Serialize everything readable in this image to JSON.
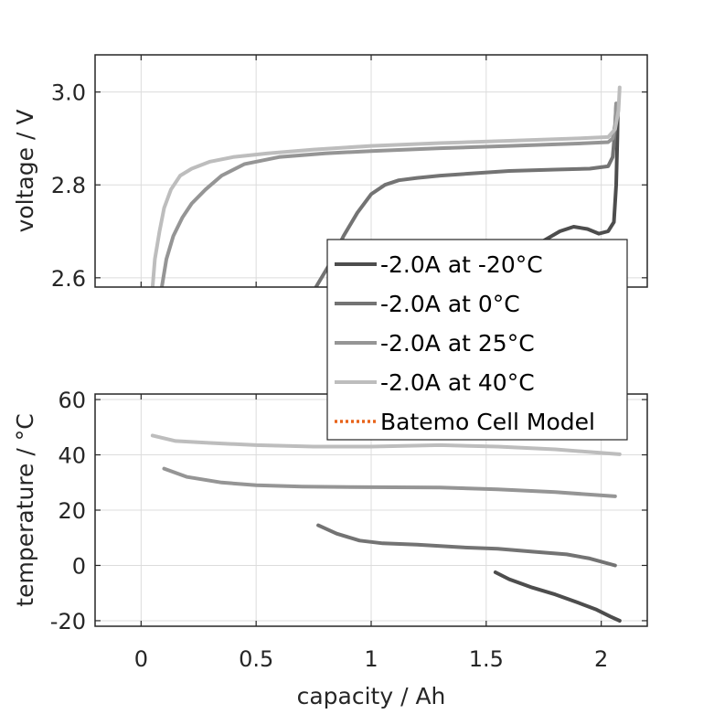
{
  "chart_data": [
    {
      "type": "line",
      "title": "",
      "xlabel": "",
      "ylabel": "voltage / V",
      "xlim": [
        -0.2,
        2.2
      ],
      "ylim": [
        2.58,
        3.08
      ],
      "xticks": [
        0,
        0.5,
        1,
        1.5,
        2
      ],
      "yticks": [
        2.6,
        2.8,
        3.0
      ],
      "ytick_labels": [
        "2.6",
        "2.8",
        "3.0"
      ],
      "grid": true,
      "series": [
        {
          "name": "-2.0A at -20°C",
          "color": "#4d4d4d",
          "x": [
            1.4,
            1.5,
            1.6,
            1.68,
            1.75,
            1.82,
            1.88,
            1.94,
            1.99,
            2.03,
            2.055,
            2.065,
            2.07,
            2.072,
            2.075
          ],
          "y": [
            2.5,
            2.55,
            2.61,
            2.65,
            2.68,
            2.7,
            2.71,
            2.705,
            2.695,
            2.7,
            2.72,
            2.8,
            2.9,
            2.96,
            2.975
          ]
        },
        {
          "name": "-2.0A at 0°C",
          "color": "#737373",
          "x": [
            0.76,
            0.82,
            0.88,
            0.94,
            1.0,
            1.06,
            1.12,
            1.2,
            1.3,
            1.45,
            1.6,
            1.8,
            1.95,
            2.03,
            2.05,
            2.06,
            2.065
          ],
          "y": [
            2.58,
            2.63,
            2.69,
            2.74,
            2.78,
            2.8,
            2.81,
            2.815,
            2.82,
            2.825,
            2.83,
            2.833,
            2.835,
            2.84,
            2.86,
            2.92,
            2.975
          ]
        },
        {
          "name": "-2.0A at 25°C",
          "color": "#959595",
          "x": [
            0.09,
            0.11,
            0.14,
            0.18,
            0.22,
            0.28,
            0.35,
            0.45,
            0.6,
            0.8,
            1.0,
            1.3,
            1.6,
            1.9,
            2.03,
            2.05,
            2.06,
            2.065
          ],
          "y": [
            2.58,
            2.64,
            2.69,
            2.73,
            2.76,
            2.79,
            2.82,
            2.845,
            2.86,
            2.868,
            2.873,
            2.879,
            2.884,
            2.889,
            2.892,
            2.9,
            2.93,
            2.975
          ]
        },
        {
          "name": "-2.0A at 40°C",
          "color": "#bdbdbd",
          "x": [
            0.05,
            0.06,
            0.08,
            0.1,
            0.13,
            0.17,
            0.22,
            0.3,
            0.4,
            0.55,
            0.75,
            1.0,
            1.3,
            1.6,
            1.9,
            2.03,
            2.06,
            2.075,
            2.08
          ],
          "y": [
            2.58,
            2.64,
            2.7,
            2.75,
            2.79,
            2.82,
            2.835,
            2.85,
            2.86,
            2.868,
            2.876,
            2.884,
            2.89,
            2.895,
            2.9,
            2.903,
            2.92,
            2.96,
            3.01
          ]
        }
      ]
    },
    {
      "type": "line",
      "title": "",
      "xlabel": "capacity / Ah",
      "ylabel": "temperature / °C",
      "xlim": [
        -0.2,
        2.2
      ],
      "ylim": [
        -22,
        62
      ],
      "xticks": [
        0,
        0.5,
        1,
        1.5,
        2
      ],
      "xtick_labels": [
        "0",
        "0.5",
        "1",
        "1.5",
        "2"
      ],
      "yticks": [
        -20,
        0,
        20,
        40,
        60
      ],
      "ytick_labels": [
        "-20",
        "0",
        "20",
        "40",
        "60"
      ],
      "grid": true,
      "series": [
        {
          "name": "-2.0A at -20°C",
          "color": "#4d4d4d",
          "x": [
            1.54,
            1.6,
            1.7,
            1.8,
            1.9,
            1.98,
            2.04,
            2.08
          ],
          "y": [
            -2.5,
            -5,
            -8,
            -10.5,
            -13.5,
            -16,
            -18.5,
            -20
          ]
        },
        {
          "name": "-2.0A at 0°C",
          "color": "#737373",
          "x": [
            0.77,
            0.85,
            0.95,
            1.05,
            1.2,
            1.4,
            1.55,
            1.7,
            1.85,
            1.95,
            2.06
          ],
          "y": [
            14.5,
            11.5,
            9,
            8,
            7.5,
            6.5,
            6,
            5,
            4,
            2.5,
            0
          ]
        },
        {
          "name": "-2.0A at 25°C",
          "color": "#959595",
          "x": [
            0.1,
            0.2,
            0.35,
            0.5,
            0.7,
            1.0,
            1.3,
            1.55,
            1.8,
            2.06
          ],
          "y": [
            35,
            32,
            30,
            29,
            28.5,
            28.3,
            28.2,
            27.5,
            26.5,
            25
          ]
        },
        {
          "name": "-2.0A at 40°C",
          "color": "#bdbdbd",
          "x": [
            0.05,
            0.15,
            0.3,
            0.5,
            0.75,
            1.0,
            1.3,
            1.55,
            1.8,
            2.08
          ],
          "y": [
            47,
            45,
            44.3,
            43.5,
            43,
            43,
            43.5,
            43,
            42,
            40.2
          ]
        }
      ]
    }
  ],
  "legend": {
    "placement": "center-right",
    "entries": [
      {
        "label": "-2.0A at -20°C",
        "color": "#4d4d4d",
        "style": "solid"
      },
      {
        "label": "-2.0A at 0°C",
        "color": "#737373",
        "style": "solid"
      },
      {
        "label": "-2.0A at 25°C",
        "color": "#959595",
        "style": "solid"
      },
      {
        "label": "-2.0A at 40°C",
        "color": "#bdbdbd",
        "style": "solid"
      },
      {
        "label": "Batemo Cell Model",
        "color": "#e8641b",
        "style": "dotted"
      }
    ]
  }
}
